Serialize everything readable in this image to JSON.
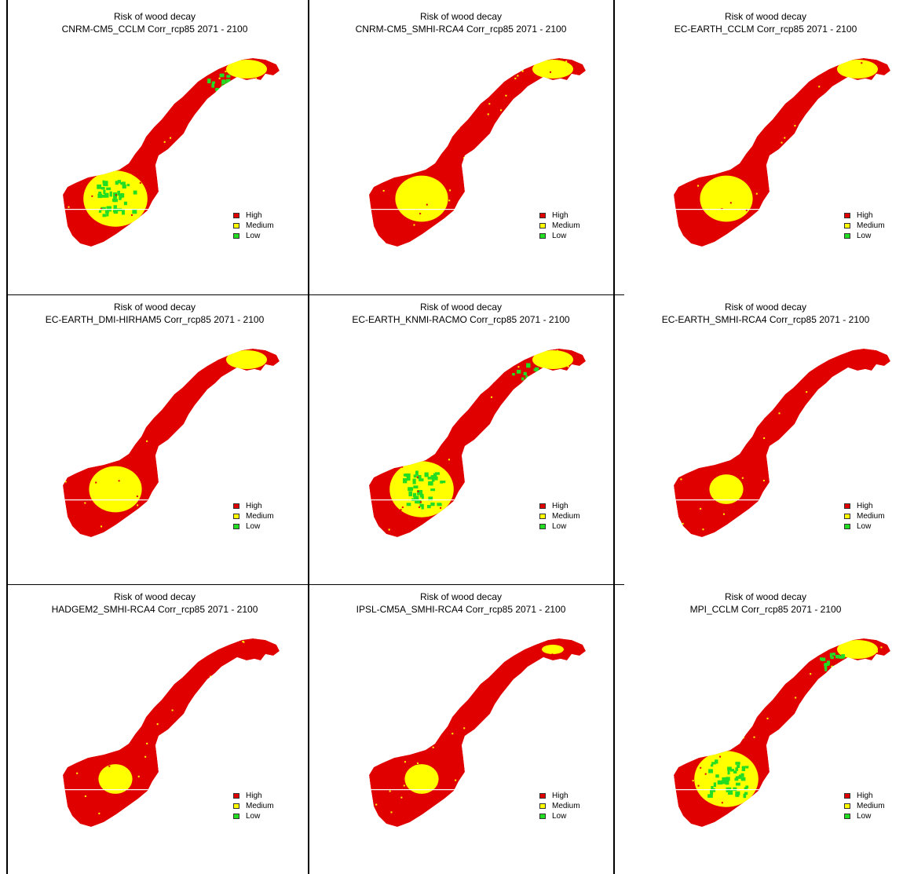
{
  "colors": {
    "high": "#e00000",
    "medium": "#ffff00",
    "low": "#22dd22",
    "border": "#000000"
  },
  "legend_labels": [
    "High",
    "Medium",
    "Low"
  ],
  "panels": [
    {
      "title": "Risk of wood decay",
      "subtitle": "CNRM-CM5_CCLM Corr_rcp85   2071 - 2100",
      "dominant": "mixed-green"
    },
    {
      "title": "Risk of wood decay",
      "subtitle": "CNRM-CM5_SMHI-RCA4 Corr_rcp85   2071 - 2100",
      "dominant": "mixed-yellow"
    },
    {
      "title": "Risk of wood decay",
      "subtitle": "EC-EARTH_CCLM Corr_rcp85   2071 - 2100",
      "dominant": "mixed-yellow"
    },
    {
      "title": "Risk of wood decay",
      "subtitle": "EC-EARTH_DMI-HIRHAM5 Corr_rcp85   2071 - 2100",
      "dominant": "mixed-yellow"
    },
    {
      "title": "Risk of wood decay",
      "subtitle": "EC-EARTH_KNMI-RACMO Corr_rcp85   2071 - 2100",
      "dominant": "mixed-green"
    },
    {
      "title": "Risk of wood decay",
      "subtitle": "EC-EARTH_SMHI-RCA4 Corr_rcp85   2071 - 2100",
      "dominant": "red"
    },
    {
      "title": "Risk of wood decay",
      "subtitle": "HADGEM2_SMHI-RCA4 Corr_rcp85   2071 - 2100",
      "dominant": "red"
    },
    {
      "title": "Risk of wood decay",
      "subtitle": "IPSL-CM5A_SMHI-RCA4 Corr_rcp85   2071 - 2100",
      "dominant": "red"
    },
    {
      "title": "Risk of wood decay",
      "subtitle": "MPI_CCLM Corr_rcp85   2071 - 2100",
      "dominant": "mixed-green"
    }
  ]
}
